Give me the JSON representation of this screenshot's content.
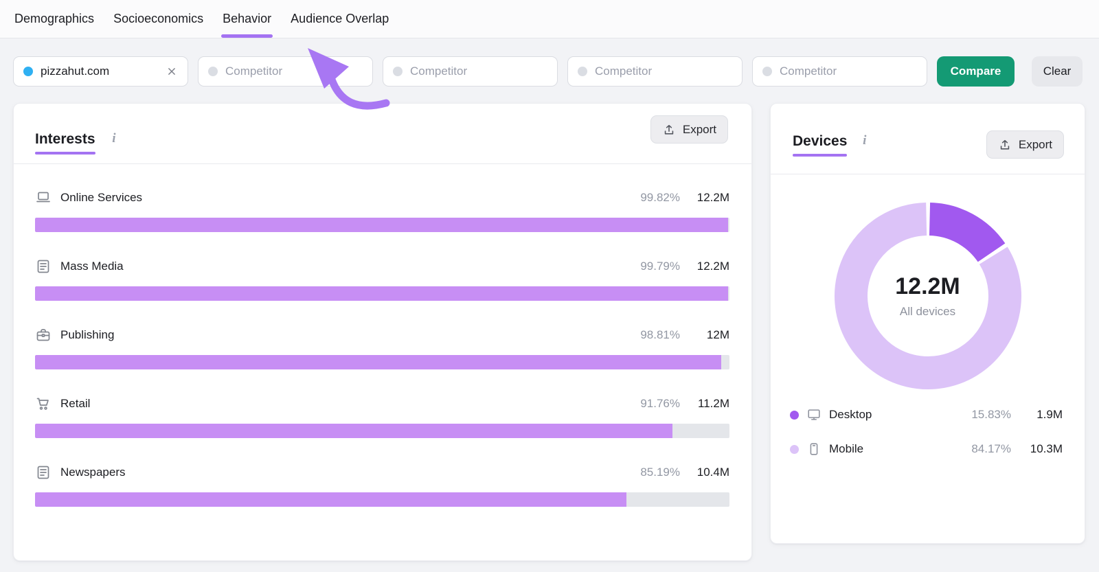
{
  "tabs": {
    "items": [
      {
        "label": "Demographics",
        "active": false
      },
      {
        "label": "Socioeconomics",
        "active": false
      },
      {
        "label": "Behavior",
        "active": true
      },
      {
        "label": "Audience Overlap",
        "active": false
      }
    ]
  },
  "filters": {
    "domain_chip": {
      "label": "pizzahut.com",
      "dot_color": "#2fb0f2"
    },
    "competitors": [
      "Competitor",
      "Competitor",
      "Competitor",
      "Competitor"
    ],
    "compare_label": "Compare",
    "clear_label": "Clear"
  },
  "interests": {
    "title": "Interests",
    "info_icon": "i",
    "export_label": "Export",
    "bar_color": "#c78ef4",
    "track_color": "#e4e6ea",
    "rows": [
      {
        "icon": "laptop-icon",
        "label": "Online Services",
        "percent": "99.82%",
        "reach": "12.2M"
      },
      {
        "icon": "news-icon",
        "label": "Mass Media",
        "percent": "99.79%",
        "reach": "12.2M"
      },
      {
        "icon": "briefcase-icon",
        "label": "Publishing",
        "percent": "98.81%",
        "reach": "12M"
      },
      {
        "icon": "cart-icon",
        "label": "Retail",
        "percent": "91.76%",
        "reach": "11.2M"
      },
      {
        "icon": "news-icon",
        "label": "Newspapers",
        "percent": "85.19%",
        "reach": "10.4M"
      }
    ]
  },
  "devices": {
    "title": "Devices",
    "info_icon": "i",
    "export_label": "Export",
    "total": "12.2M",
    "total_label": "All devices",
    "segments": [
      {
        "icon": "desktop-icon",
        "label": "Desktop",
        "percent": "15.83%",
        "reach": "1.9M",
        "color": "#a159ef"
      },
      {
        "icon": "mobile-icon",
        "label": "Mobile",
        "percent": "84.17%",
        "reach": "10.3M",
        "color": "#dcc3f8"
      }
    ]
  },
  "theme": {
    "accent_purple": "#a473f2",
    "compare_green": "#149a74",
    "arrow_purple": "#a877f3"
  },
  "chart_data": [
    {
      "type": "bar",
      "title": "Interests",
      "categories": [
        "Online Services",
        "Mass Media",
        "Publishing",
        "Retail",
        "Newspapers"
      ],
      "values": [
        99.82,
        99.79,
        98.81,
        91.76,
        85.19
      ],
      "value_labels": [
        "12.2M",
        "12.2M",
        "12M",
        "11.2M",
        "10.4M"
      ],
      "xlabel": "",
      "ylabel": "",
      "xlim": [
        0,
        100
      ],
      "unit": "%",
      "orientation": "horizontal"
    },
    {
      "type": "pie",
      "title": "Devices",
      "categories": [
        "Desktop",
        "Mobile"
      ],
      "values": [
        15.83,
        84.17
      ],
      "value_labels": [
        "1.9M",
        "10.3M"
      ],
      "center_label": "12.2M All devices",
      "colors": [
        "#a159ef",
        "#dcc3f8"
      ],
      "legend_position": "bottom"
    }
  ]
}
